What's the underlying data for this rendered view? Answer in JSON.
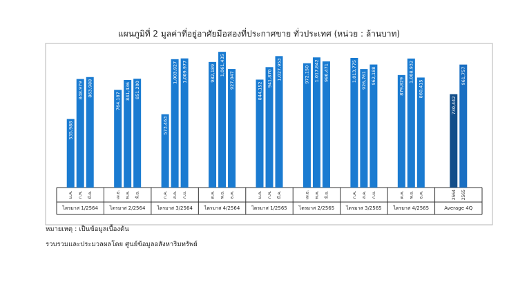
{
  "chart_data": {
    "type": "bar",
    "title": "แผนภูมิที่ 2 มูลค่าที่อยู่อาศัยมือสองที่ประกาศขาย ทั่วประเทศ (หน่วย : ล้านบาท)",
    "ylim": [
      0,
      1150000
    ],
    "grid": false,
    "legend": "none",
    "groups": [
      {
        "label": "ไตรมาส 1/2564",
        "bars": [
          {
            "month": "ม.ค.",
            "value": 535988,
            "value_label": "535,988"
          },
          {
            "month": "ก.พ.",
            "value": 848979,
            "value_label": "848,979"
          },
          {
            "month": "มี.ค.",
            "value": 863988,
            "value_label": "863,988"
          }
        ]
      },
      {
        "label": "ไตรมาส 2/2564",
        "bars": [
          {
            "month": "เม.ย.",
            "value": 764187,
            "value_label": "764,187"
          },
          {
            "month": "พ.ค.",
            "value": 841436,
            "value_label": "841,436"
          },
          {
            "month": "มิ.ย.",
            "value": 851200,
            "value_label": "851,200"
          }
        ]
      },
      {
        "label": "ไตรมาส 3/2564",
        "bars": [
          {
            "month": "ก.ค.",
            "value": 573463,
            "value_label": "573,463"
          },
          {
            "month": "ส.ค.",
            "value": 1003927,
            "value_label": "1,003,927"
          },
          {
            "month": "ก.ย.",
            "value": 1009977,
            "value_label": "1,009,977"
          }
        ]
      },
      {
        "label": "ไตรมาส 4/2564",
        "bars": [
          {
            "month": "ต.ค.",
            "value": 982189,
            "value_label": "982,189"
          },
          {
            "month": "พ.ย.",
            "value": 1061435,
            "value_label": "1,061,435"
          },
          {
            "month": "ธ.ค.",
            "value": 927047,
            "value_label": "927,047"
          }
        ]
      },
      {
        "label": "ไตรมาส 1/2565",
        "bars": [
          {
            "month": "ม.ค.",
            "value": 844152,
            "value_label": "844,152"
          },
          {
            "month": "ก.พ.",
            "value": 941870,
            "value_label": "941,870"
          },
          {
            "month": "มี.ค.",
            "value": 1027953,
            "value_label": "1,027,953"
          }
        ]
      },
      {
        "label": "ไตรมาส 2/2565",
        "bars": [
          {
            "month": "เม.ย.",
            "value": 972150,
            "value_label": "972,150"
          },
          {
            "month": "พ.ค.",
            "value": 1017842,
            "value_label": "1,017,842"
          },
          {
            "month": "มิ.ย.",
            "value": 986471,
            "value_label": "986,471"
          }
        ]
      },
      {
        "label": "ไตรมาส 3/2565",
        "bars": [
          {
            "month": "ก.ค.",
            "value": 1013775,
            "value_label": "1,013,775"
          },
          {
            "month": "ส.ค.",
            "value": 926761,
            "value_label": "926,761"
          },
          {
            "month": "ก.ย.",
            "value": 962188,
            "value_label": "962,188"
          }
        ]
      },
      {
        "label": "ไตรมาส 4/2565",
        "bars": [
          {
            "month": "ต.ค.",
            "value": 879829,
            "value_label": "879,829"
          },
          {
            "month": "พ.ย.",
            "value": 1008932,
            "value_label": "1,008,932"
          },
          {
            "month": "ธ.ค.",
            "value": 860415,
            "value_label": "860,415"
          }
        ]
      },
      {
        "label": "Average 4Q",
        "bars": [
          {
            "month": "2564",
            "value": 730442,
            "value_label": "730,442"
          },
          {
            "month": "2565",
            "value": 961757,
            "value_label": "961,757"
          }
        ]
      }
    ],
    "colors": {
      "bar": "#1a7bd1",
      "average_2564": "#124e8a",
      "average_2565": "#1a6fc2",
      "frame": "#b5b5b5"
    }
  },
  "footnote": "หมายเหตุ : เป็นข้อมูลเบื้องต้น",
  "source": "รวบรวมและประมวลผลโดย ศูนย์ข้อมูลอสังหาริมทรัพย์"
}
